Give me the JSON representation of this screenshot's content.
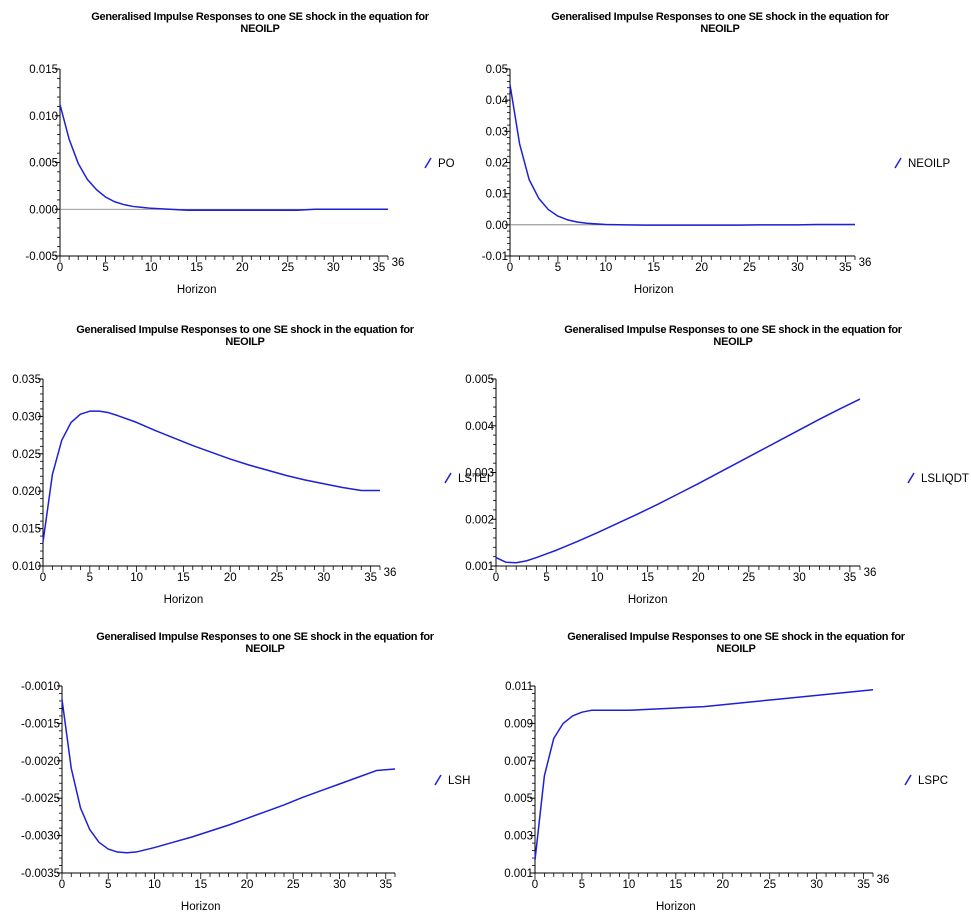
{
  "chart_data": [
    {
      "type": "line",
      "title": "Generalised Impulse Responses to one SE shock in the equation for",
      "subtitle": "NEOILP",
      "xlabel": "Horizon",
      "xlim": [
        0,
        36
      ],
      "x_ticks": [
        "0",
        "5",
        "10",
        "15",
        "20",
        "25",
        "30",
        "35"
      ],
      "x_end_label": "36",
      "ylim": [
        -0.005,
        0.015
      ],
      "y_ticks": [
        "0.015",
        "0.010",
        "0.005",
        "0.000",
        "-0.005"
      ],
      "zero_line": true,
      "legend_label": "PO",
      "color": "#1f1fd6",
      "series": [
        {
          "name": "PO",
          "x": [
            0,
            1,
            2,
            3,
            4,
            5,
            6,
            7,
            8,
            9,
            10,
            12,
            14,
            16,
            18,
            20,
            22,
            24,
            26,
            28,
            30,
            32,
            34,
            36
          ],
          "y": [
            0.0112,
            0.0075,
            0.0049,
            0.0032,
            0.0021,
            0.0013,
            0.0008,
            0.0005,
            0.0003,
            0.0002,
            0.0001,
            0.0,
            -0.0001,
            -0.0001,
            -0.0001,
            -0.0001,
            -0.0001,
            -0.0001,
            -0.0001,
            0.0,
            0.0,
            0.0,
            0.0,
            0.0
          ]
        }
      ]
    },
    {
      "type": "line",
      "title": "Generalised Impulse Responses to one SE shock in the equation for",
      "subtitle": "NEOILP",
      "xlabel": "Horizon",
      "xlim": [
        0,
        36
      ],
      "x_ticks": [
        "0",
        "5",
        "10",
        "15",
        "20",
        "25",
        "30",
        "35"
      ],
      "x_end_label": "36",
      "ylim": [
        -0.01,
        0.05
      ],
      "y_ticks": [
        "0.05",
        "0.04",
        "0.03",
        "0.02",
        "0.01",
        "0.00",
        "-0.01"
      ],
      "zero_line": true,
      "legend_label": "NEOILP",
      "color": "#1f1fd6",
      "series": [
        {
          "name": "NEOILP",
          "x": [
            0,
            1,
            2,
            3,
            4,
            5,
            6,
            7,
            8,
            9,
            10,
            12,
            14,
            16,
            18,
            20,
            22,
            24,
            26,
            28,
            30,
            32,
            34,
            36
          ],
          "y": [
            0.045,
            0.026,
            0.0145,
            0.0085,
            0.0049,
            0.0028,
            0.0016,
            0.0009,
            0.0005,
            0.0003,
            0.0001,
            0.0,
            -0.0001,
            -0.0001,
            -0.0001,
            -0.0001,
            -0.0001,
            -0.0001,
            0.0,
            0.0,
            0.0,
            0.0001,
            0.0001,
            0.0001
          ]
        }
      ]
    },
    {
      "type": "line",
      "title": "Generalised Impulse Responses to one SE shock in the equation for",
      "subtitle": "NEOILP",
      "xlabel": "Horizon",
      "xlim": [
        0,
        36
      ],
      "x_ticks": [
        "0",
        "5",
        "10",
        "15",
        "20",
        "25",
        "30",
        "35"
      ],
      "x_end_label": "36",
      "ylim": [
        0.01,
        0.035
      ],
      "y_ticks": [
        "0.035",
        "0.030",
        "0.025",
        "0.020",
        "0.015",
        "0.010"
      ],
      "zero_line": false,
      "legend_label": "LSTEI",
      "color": "#1f1fd6",
      "series": [
        {
          "name": "LSTEI",
          "x": [
            0,
            1,
            2,
            3,
            4,
            5,
            6,
            7,
            8,
            10,
            12,
            14,
            16,
            18,
            20,
            22,
            24,
            26,
            28,
            30,
            32,
            34,
            36
          ],
          "y": [
            0.0132,
            0.0222,
            0.0268,
            0.0292,
            0.0303,
            0.0307,
            0.0307,
            0.0305,
            0.0301,
            0.0292,
            0.0281,
            0.0271,
            0.0261,
            0.0252,
            0.0243,
            0.0235,
            0.0228,
            0.0221,
            0.0215,
            0.021,
            0.0205,
            0.0201,
            0.0201
          ]
        }
      ]
    },
    {
      "type": "line",
      "title": "Generalised Impulse Responses to one SE shock in the equation for",
      "subtitle": "NEOILP",
      "xlabel": "Horizon",
      "xlim": [
        0,
        36
      ],
      "x_ticks": [
        "0",
        "5",
        "10",
        "15",
        "20",
        "25",
        "30",
        "35"
      ],
      "x_end_label": "36",
      "ylim": [
        0.001,
        0.005
      ],
      "y_ticks": [
        "0.005",
        "0.004",
        "0.003",
        "0.002",
        "0.001"
      ],
      "zero_line": false,
      "legend_label": "LSLIQDT",
      "color": "#1f1fd6",
      "series": [
        {
          "name": "LSLIQDT",
          "x": [
            0,
            1,
            2,
            3,
            4,
            5,
            6,
            8,
            10,
            12,
            14,
            16,
            18,
            20,
            22,
            24,
            26,
            28,
            30,
            32,
            34,
            36
          ],
          "y": [
            0.00118,
            0.00108,
            0.00107,
            0.00111,
            0.00118,
            0.00126,
            0.00134,
            0.00152,
            0.00171,
            0.00191,
            0.00211,
            0.00232,
            0.00254,
            0.00276,
            0.00299,
            0.00322,
            0.00345,
            0.00368,
            0.00391,
            0.00414,
            0.00436,
            0.00457
          ]
        }
      ]
    },
    {
      "type": "line",
      "title": "Generalised Impulse Responses to one SE shock in the equation for",
      "subtitle": "NEOILP",
      "xlabel": "Horizon",
      "xlim": [
        0,
        36
      ],
      "x_ticks": [
        "0",
        "5",
        "10",
        "15",
        "20",
        "25",
        "30",
        "35"
      ],
      "x_end_label": "",
      "ylim": [
        -0.0035,
        -0.001
      ],
      "y_ticks": [
        "-0.0010",
        "-0.0015",
        "-0.0020",
        "-0.0025",
        "-0.0030",
        "-0.0035"
      ],
      "zero_line": false,
      "legend_label": "LSH",
      "color": "#1f1fd6",
      "series": [
        {
          "name": "LSH",
          "x": [
            0,
            1,
            2,
            3,
            4,
            5,
            6,
            7,
            8,
            10,
            12,
            14,
            16,
            18,
            20,
            22,
            24,
            26,
            28,
            30,
            32,
            34,
            36
          ],
          "y": [
            -0.00118,
            -0.0021,
            -0.00263,
            -0.00292,
            -0.00309,
            -0.00318,
            -0.00322,
            -0.00323,
            -0.00322,
            -0.00316,
            -0.00309,
            -0.00302,
            -0.00294,
            -0.00286,
            -0.00277,
            -0.00268,
            -0.00259,
            -0.00249,
            -0.0024,
            -0.00231,
            -0.00222,
            -0.00213,
            -0.00211
          ]
        }
      ]
    },
    {
      "type": "line",
      "title": "Generalised Impulse Responses to one SE shock in the equation for",
      "subtitle": "NEOILP",
      "xlabel": "Horizon",
      "xlim": [
        0,
        36
      ],
      "x_ticks": [
        "0",
        "5",
        "10",
        "15",
        "20",
        "25",
        "30",
        "35"
      ],
      "x_end_label": "36",
      "ylim": [
        0.001,
        0.011
      ],
      "y_ticks": [
        "0.011",
        "0.009",
        "0.007",
        "0.005",
        "0.003",
        "0.001"
      ],
      "zero_line": false,
      "legend_label": "LSPC",
      "color": "#1f1fd6",
      "series": [
        {
          "name": "LSPC",
          "x": [
            0,
            1,
            2,
            3,
            4,
            5,
            6,
            7,
            8,
            10,
            12,
            14,
            16,
            18,
            20,
            22,
            24,
            26,
            28,
            30,
            32,
            34,
            36
          ],
          "y": [
            0.0017,
            0.0062,
            0.0082,
            0.009,
            0.0094,
            0.0096,
            0.0097,
            0.0097,
            0.0097,
            0.0097,
            0.00975,
            0.0098,
            0.00985,
            0.0099,
            0.01,
            0.0101,
            0.0102,
            0.0103,
            0.0104,
            0.0105,
            0.0106,
            0.0107,
            0.0108
          ]
        }
      ]
    }
  ]
}
